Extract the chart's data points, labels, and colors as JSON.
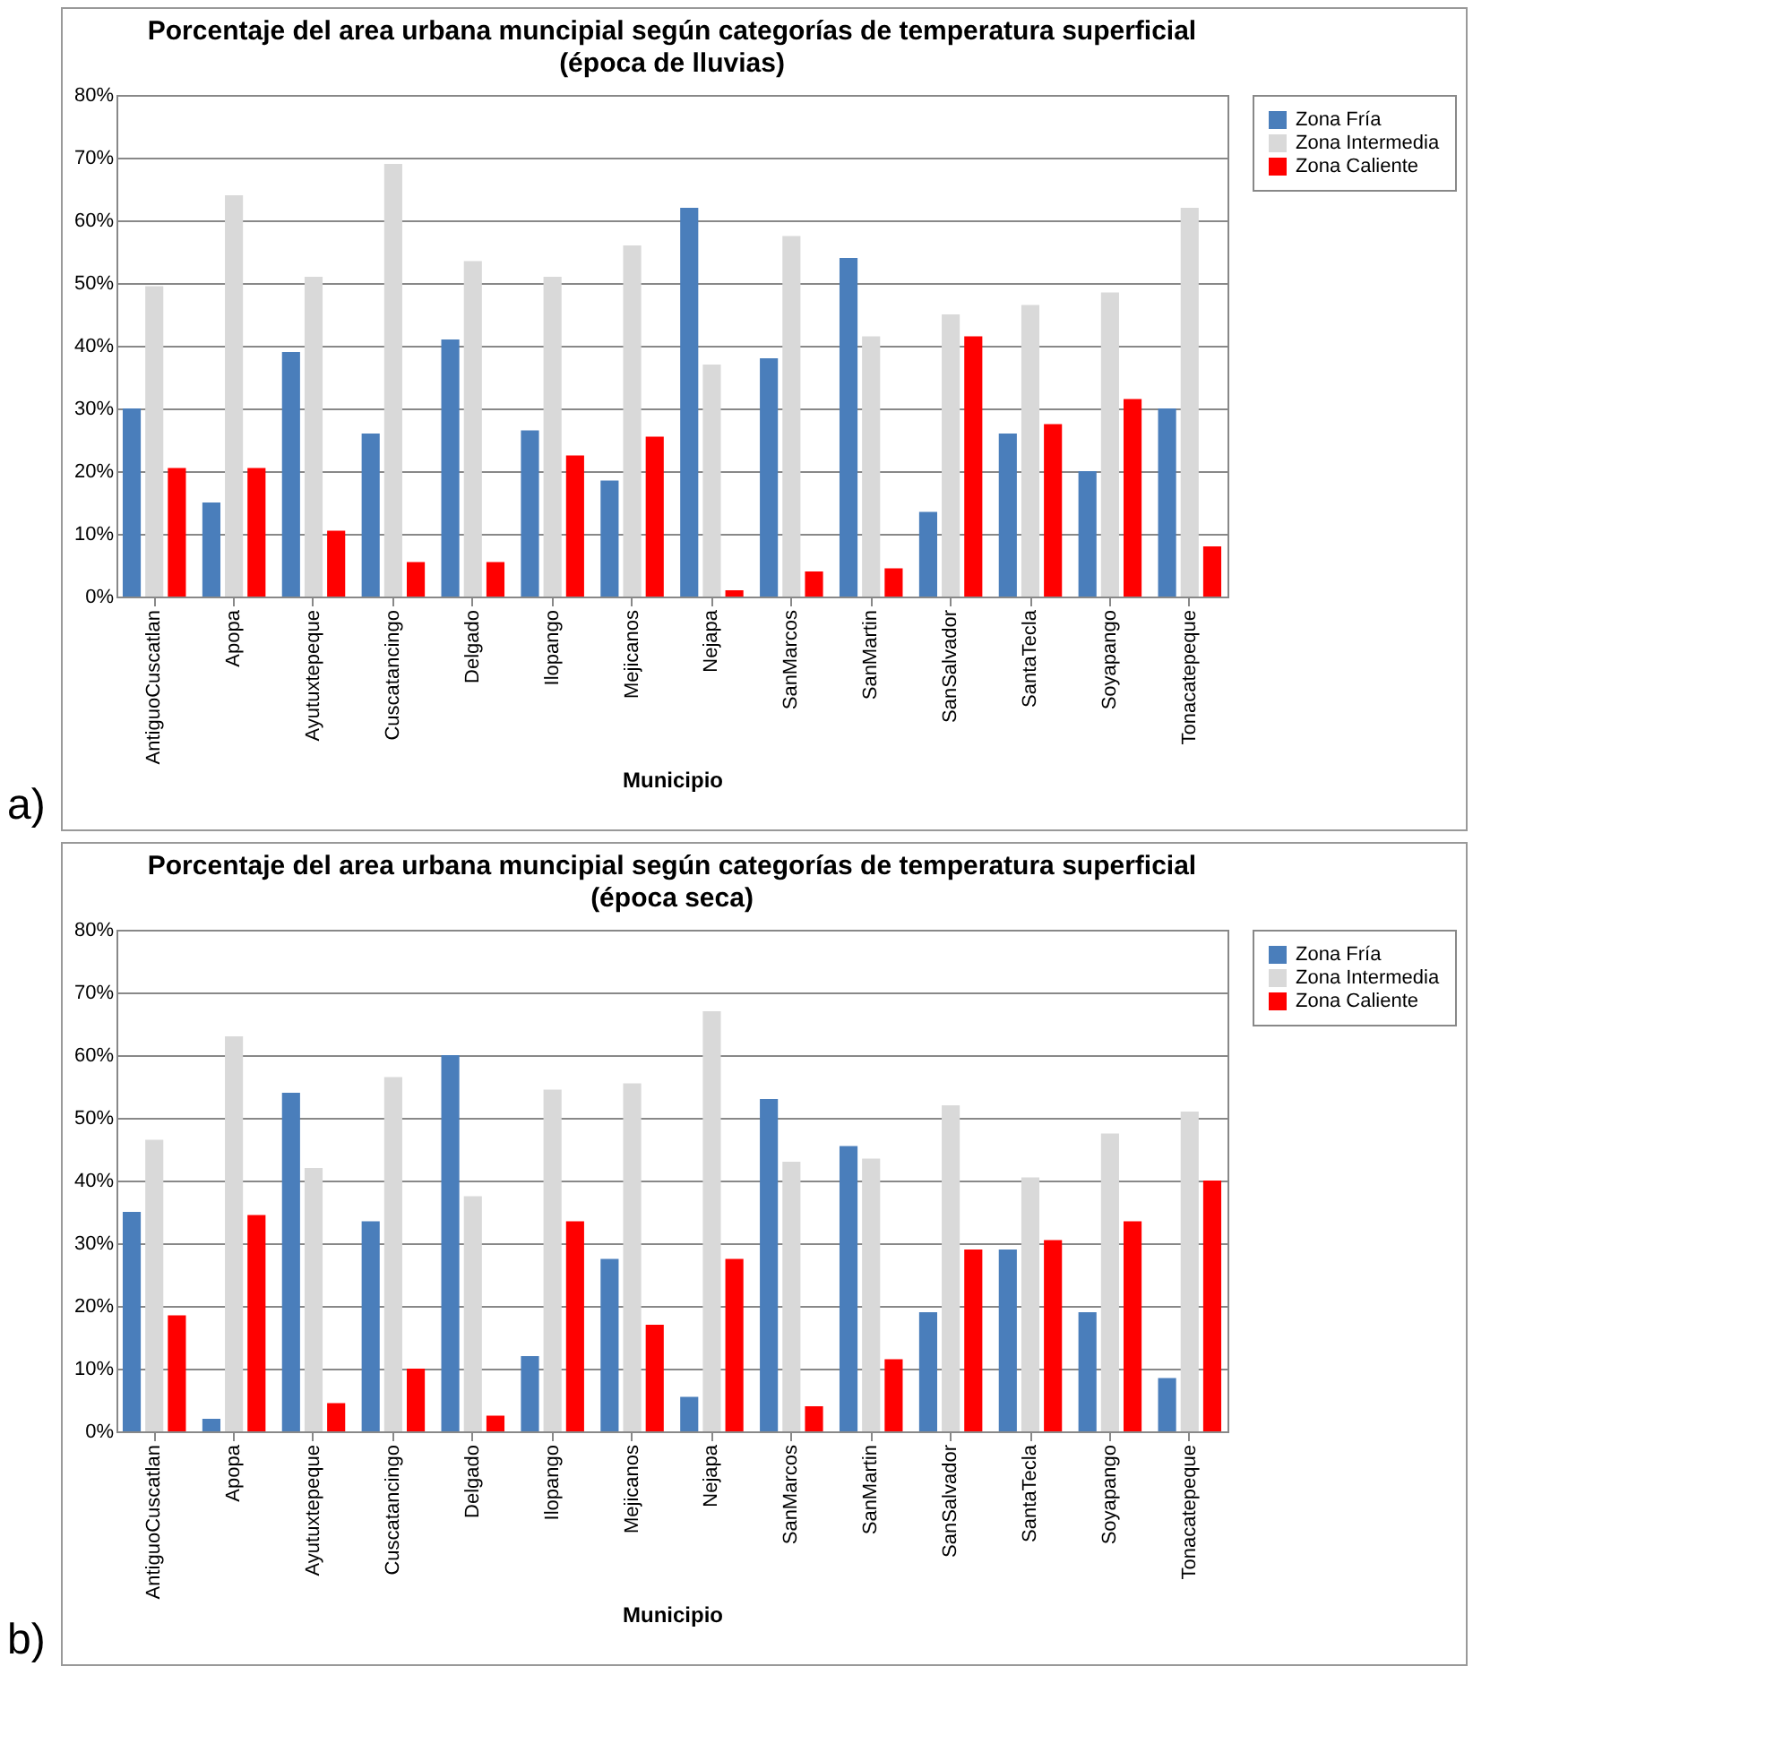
{
  "chart_data": [
    {
      "type": "bar",
      "title": "Porcentaje del area urbana muncipial según categorías de temperatura superficial",
      "subtitle": "(época de lluvias)",
      "xlabel": "Municipio",
      "annotations": [
        "a)"
      ],
      "categories": [
        "AntiguoCuscatlan",
        "Apopa",
        "Ayutuxtepeque",
        "Cuscatancingo",
        "Delgado",
        "Ilopango",
        "Mejicanos",
        "Nejapa",
        "SanMarcos",
        "SanMartin",
        "SanSalvador",
        "SantaTecla",
        "Soyapango",
        "Tonacatepeque"
      ],
      "series": [
        {
          "name": "Zona Fría",
          "color": "#4a7ebb",
          "values": [
            30,
            15,
            39,
            26,
            41,
            26.5,
            18.5,
            62,
            38,
            54,
            13.5,
            26,
            20,
            30
          ]
        },
        {
          "name": "Zona Intermedia",
          "color": "#d9d9d9",
          "values": [
            49.5,
            64,
            51,
            69,
            53.5,
            51,
            56,
            37,
            57.5,
            41.5,
            45,
            46.5,
            48.5,
            62
          ]
        },
        {
          "name": "Zona Caliente",
          "color": "#ff0000",
          "values": [
            20.5,
            20.5,
            10.5,
            5.5,
            5.5,
            22.5,
            25.5,
            1,
            4,
            4.5,
            41.5,
            27.5,
            31.5,
            8
          ]
        }
      ],
      "ylim": [
        0,
        80
      ],
      "yticks": [
        {
          "value": 0,
          "label": "0%"
        },
        {
          "value": 10,
          "label": "10%"
        },
        {
          "value": 20,
          "label": "20%"
        },
        {
          "value": 30,
          "label": "30%"
        },
        {
          "value": 40,
          "label": "40%"
        },
        {
          "value": 50,
          "label": "50%"
        },
        {
          "value": 60,
          "label": "60%"
        },
        {
          "value": 70,
          "label": "70%"
        },
        {
          "value": 80,
          "label": "80%"
        }
      ],
      "grid": "y",
      "legend": "right"
    },
    {
      "type": "bar",
      "title": "Porcentaje del area urbana muncipial según categorías de temperatura superficial",
      "subtitle": "(época seca)",
      "xlabel": "Municipio",
      "annotations": [
        "b)"
      ],
      "categories": [
        "AntiguoCuscatlan",
        "Apopa",
        "Ayutuxtepeque",
        "Cuscatancingo",
        "Delgado",
        "Ilopango",
        "Mejicanos",
        "Nejapa",
        "SanMarcos",
        "SanMartin",
        "SanSalvador",
        "SantaTecla",
        "Soyapango",
        "Tonacatepeque"
      ],
      "series": [
        {
          "name": "Zona Fría",
          "color": "#4a7ebb",
          "values": [
            35,
            2,
            54,
            33.5,
            60,
            12,
            27.5,
            5.5,
            53,
            45.5,
            19,
            29,
            19,
            8.5
          ]
        },
        {
          "name": "Zona Intermedia",
          "color": "#d9d9d9",
          "values": [
            46.5,
            63,
            42,
            56.5,
            37.5,
            54.5,
            55.5,
            67,
            43,
            43.5,
            52,
            40.5,
            47.5,
            51
          ]
        },
        {
          "name": "Zona Caliente",
          "color": "#ff0000",
          "values": [
            18.5,
            34.5,
            4.5,
            10,
            2.5,
            33.5,
            17,
            27.5,
            4,
            11.5,
            29,
            30.5,
            33.5,
            40
          ]
        }
      ],
      "ylim": [
        0,
        80
      ],
      "yticks": [
        {
          "value": 0,
          "label": "0%"
        },
        {
          "value": 10,
          "label": "10%"
        },
        {
          "value": 20,
          "label": "20%"
        },
        {
          "value": 30,
          "label": "30%"
        },
        {
          "value": 40,
          "label": "40%"
        },
        {
          "value": 50,
          "label": "50%"
        },
        {
          "value": 60,
          "label": "60%"
        },
        {
          "value": 70,
          "label": "70%"
        },
        {
          "value": 80,
          "label": "80%"
        }
      ],
      "grid": "y",
      "legend": "right"
    }
  ]
}
